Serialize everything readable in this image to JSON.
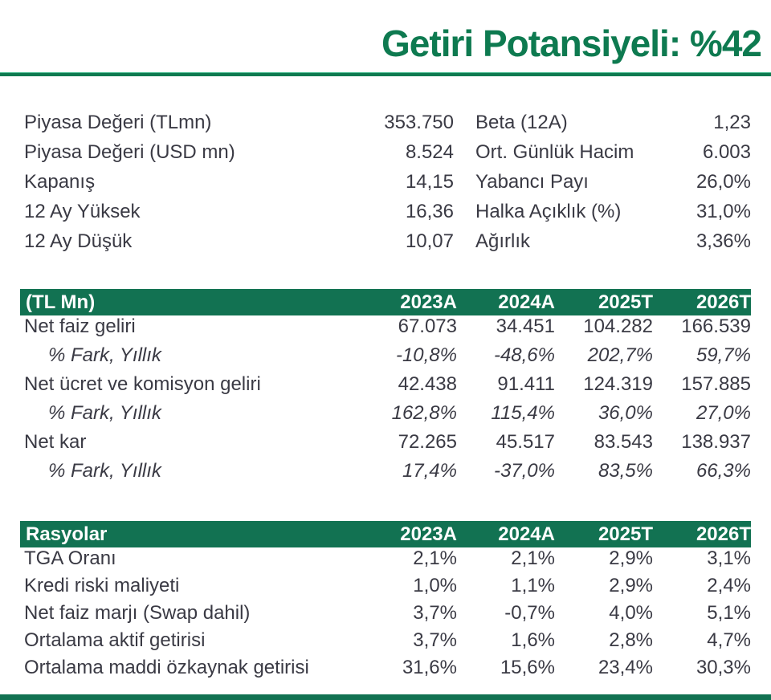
{
  "colors": {
    "accent_green": "#0E7A50",
    "header_bar_green": "#127252",
    "body_text": "#3A3A44"
  },
  "title": "Getiri Potansiyeli: %42",
  "market_data": {
    "left": [
      {
        "label": "Piyasa Değeri (TLmn)",
        "value": "353.750"
      },
      {
        "label": "Piyasa Değeri (USD mn)",
        "value": "8.524"
      },
      {
        "label": "Kapanış",
        "value": "14,15"
      },
      {
        "label": "12 Ay Yüksek",
        "value": "16,36"
      },
      {
        "label": "12 Ay Düşük",
        "value": "10,07"
      }
    ],
    "right": [
      {
        "label": "Beta (12A)",
        "value": "1,23"
      },
      {
        "label": "Ort. Günlük Hacim",
        "value": "6.003"
      },
      {
        "label": "Yabancı Payı",
        "value": "26,0%"
      },
      {
        "label": "Halka Açıklık (%)",
        "value": "31,0%"
      },
      {
        "label": "Ağırlık",
        "value": "3,36%"
      }
    ]
  },
  "income_table": {
    "title": "(TL Mn)",
    "columns": [
      "2023A",
      "2024A",
      "2025T",
      "2026T"
    ],
    "rows": [
      {
        "label": "Net faiz geliri",
        "values": [
          "67.073",
          "34.451",
          "104.282",
          "166.539"
        ]
      },
      {
        "label": "% Fark, Yıllık",
        "values": [
          "-10,8%",
          "-48,6%",
          "202,7%",
          "59,7%"
        ]
      },
      {
        "label": "Net ücret ve komisyon geliri",
        "values": [
          "42.438",
          "91.411",
          "124.319",
          "157.885"
        ]
      },
      {
        "label": "% Fark, Yıllık",
        "values": [
          "162,8%",
          "115,4%",
          "36,0%",
          "27,0%"
        ]
      },
      {
        "label": "Net kar",
        "values": [
          "72.265",
          "45.517",
          "83.543",
          "138.937"
        ]
      },
      {
        "label": "% Fark, Yıllık",
        "values": [
          "17,4%",
          "-37,0%",
          "83,5%",
          "66,3%"
        ]
      }
    ]
  },
  "ratios_table": {
    "title": "Rasyolar",
    "columns": [
      "2023A",
      "2024A",
      "2025T",
      "2026T"
    ],
    "rows": [
      {
        "label": "TGA Oranı",
        "values": [
          "2,1%",
          "2,1%",
          "2,9%",
          "3,1%"
        ]
      },
      {
        "label": "Kredi riski maliyeti",
        "values": [
          "1,0%",
          "1,1%",
          "2,9%",
          "2,4%"
        ]
      },
      {
        "label": "Net faiz marjı (Swap dahil)",
        "values": [
          "3,7%",
          "-0,7%",
          "4,0%",
          "5,1%"
        ]
      },
      {
        "label": "Ortalama aktif getirisi",
        "values": [
          "3,7%",
          "1,6%",
          "2,8%",
          "4,7%"
        ]
      },
      {
        "label": "Ortalama maddi özkaynak getirisi",
        "values": [
          "31,6%",
          "15,6%",
          "23,4%",
          "30,3%"
        ]
      }
    ]
  }
}
